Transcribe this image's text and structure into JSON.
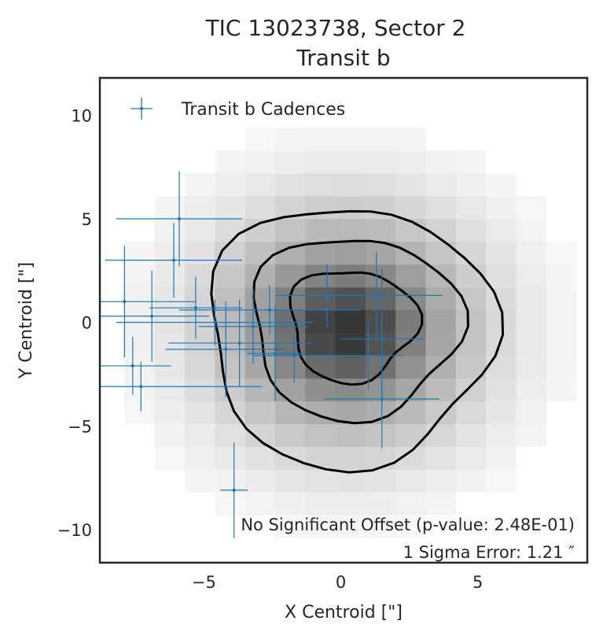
{
  "chart_data": {
    "type": "scatter",
    "title": "TIC 13023738, Sector 2",
    "subtitle": "Transit b",
    "xlabel": "X Centroid [\"]",
    "ylabel": "Y Centroid [\"]",
    "xlim": [
      -8.8,
      9.0
    ],
    "ylim": [
      -11.6,
      11.8
    ],
    "xticks": [
      {
        "value": -5,
        "label": "−5"
      },
      {
        "value": 0,
        "label": "0"
      },
      {
        "value": 5,
        "label": "5"
      }
    ],
    "yticks": [
      {
        "value": 10,
        "label": "10"
      },
      {
        "value": 5,
        "label": "5"
      },
      {
        "value": 0,
        "label": "0"
      },
      {
        "value": -5,
        "label": "−5"
      },
      {
        "value": -10,
        "label": "−10"
      }
    ],
    "grid": false,
    "legend": {
      "position": "top-left",
      "entries": [
        "Transit b Cadences"
      ]
    },
    "annotations": [
      "No Significant Offset (p-value: 2.48E-01)",
      "1 Sigma Error: 1.21 ″"
    ],
    "colors": {
      "series": "#1f77b4",
      "contour": "#000000",
      "frame": "#262626",
      "text": "#262626"
    },
    "series": [
      {
        "name": "Transit b Cadences",
        "points": [
          {
            "x": -5.9,
            "y": 5.0,
            "xerr": 2.3,
            "yerr": 2.3
          },
          {
            "x": -6.1,
            "y": 3.0,
            "xerr": 2.5,
            "yerr": 1.8
          },
          {
            "x": -7.9,
            "y": 1.0,
            "xerr": 2.6,
            "yerr": 2.7
          },
          {
            "x": -6.9,
            "y": 0.3,
            "xerr": 2.1,
            "yerr": 2.2
          },
          {
            "x": -5.3,
            "y": 0.7,
            "xerr": 1.7,
            "yerr": 1.5
          },
          {
            "x": -4.6,
            "y": 0.0,
            "xerr": 3.6,
            "yerr": 1.1
          },
          {
            "x": -4.2,
            "y": -1.3,
            "xerr": 2.2,
            "yerr": 2.3
          },
          {
            "x": -3.7,
            "y": -1.0,
            "xerr": 2.6,
            "yerr": 2.1
          },
          {
            "x": -3.2,
            "y": -0.2,
            "xerr": 2.0,
            "yerr": 1.8
          },
          {
            "x": -2.6,
            "y": 0.6,
            "xerr": 3.3,
            "yerr": 1.2
          },
          {
            "x": -1.7,
            "y": -1.6,
            "xerr": 1.5,
            "yerr": 1.3
          },
          {
            "x": -2.4,
            "y": -1.5,
            "xerr": 1.0,
            "yerr": 2.3
          },
          {
            "x": -0.5,
            "y": 1.3,
            "xerr": 1.9,
            "yerr": 1.5
          },
          {
            "x": 1.0,
            "y": -1.6,
            "xerr": 1.3,
            "yerr": 1.7
          },
          {
            "x": 1.5,
            "y": -0.8,
            "xerr": 1.5,
            "yerr": 3.4
          },
          {
            "x": 1.3,
            "y": 1.3,
            "xerr": 2.4,
            "yerr": 2.1
          },
          {
            "x": 1.5,
            "y": -3.7,
            "xerr": 2.1,
            "yerr": 2.4
          },
          {
            "x": -7.6,
            "y": -2.1,
            "xerr": 1.4,
            "yerr": 1.4
          },
          {
            "x": -7.3,
            "y": -3.1,
            "xerr": 4.4,
            "yerr": 1.2
          },
          {
            "x": -3.9,
            "y": -8.1,
            "xerr": 0.5,
            "yerr": 2.3
          }
        ]
      }
    ]
  }
}
